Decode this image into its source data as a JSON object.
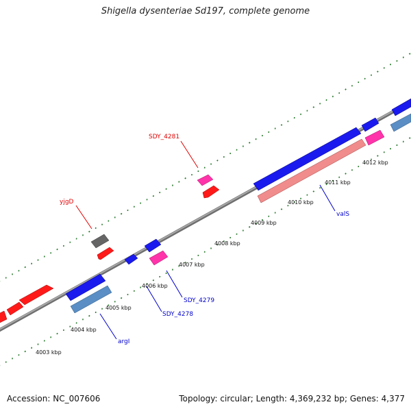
{
  "title": "Shigella dysenteriae Sd197, complete genome",
  "footer": {
    "accession": "Accession: NC_007606",
    "summary": "Topology: circular; Length: 4,369,232 bp; Genes: 4,377"
  },
  "colors": {
    "backbone": "#8a8a8a",
    "tick": "#2e7d32",
    "label_red": "#e00000",
    "label_blue": "#0000cc",
    "forward_cds": "#ff1a1a",
    "reverse_cds": "#1a1aee",
    "pseudo_or_rna": "#ff33aa",
    "other": "#666666",
    "steel": "#5a8ec4",
    "salmon": "#f08c8c"
  },
  "scale_labels": [
    "4003 kbp",
    "4004 kbp",
    "4005 kbp",
    "4006 kbp",
    "4007 kbp",
    "4008 kbp",
    "4009 kbp",
    "4010 kbp",
    "4011 kbp",
    "4012 kbp"
  ],
  "gene_labels": [
    {
      "text": "SDY_4281",
      "color": "red"
    },
    {
      "text": "yjgD",
      "color": "red"
    },
    {
      "text": "valS",
      "color": "blue"
    },
    {
      "text": "SDY_4279",
      "color": "blue"
    },
    {
      "text": "SDY_4278",
      "color": "blue"
    },
    {
      "text": "argI",
      "color": "blue"
    }
  ]
}
